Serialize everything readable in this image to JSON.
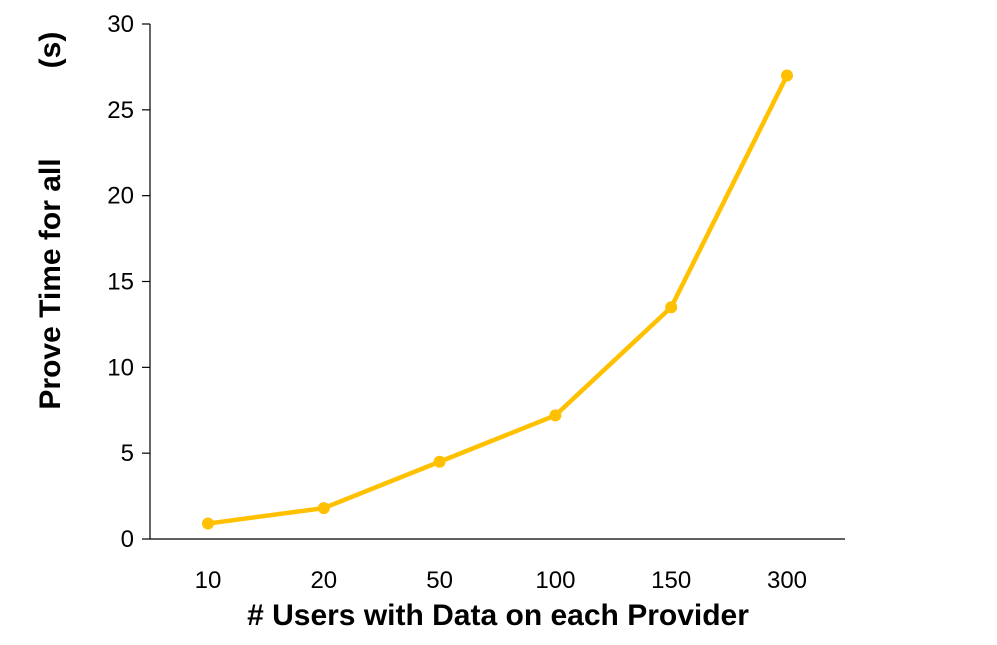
{
  "chart_data": {
    "type": "line",
    "title": "",
    "xlabel": "# Users with Data on each Provider",
    "ylabel": "Prove Time for all",
    "ylabel_unit": "(s)",
    "categories": [
      "10",
      "20",
      "50",
      "100",
      "150",
      "300"
    ],
    "series": [
      {
        "values": [
          0.9,
          1.8,
          4.5,
          7.2,
          13.5,
          27.0
        ],
        "color": "#FFC000"
      }
    ],
    "ylim": [
      0,
      30
    ],
    "yticks": [
      "0",
      "5",
      "10",
      "15",
      "20",
      "25",
      "30"
    ],
    "grid": false,
    "legend": "none"
  }
}
